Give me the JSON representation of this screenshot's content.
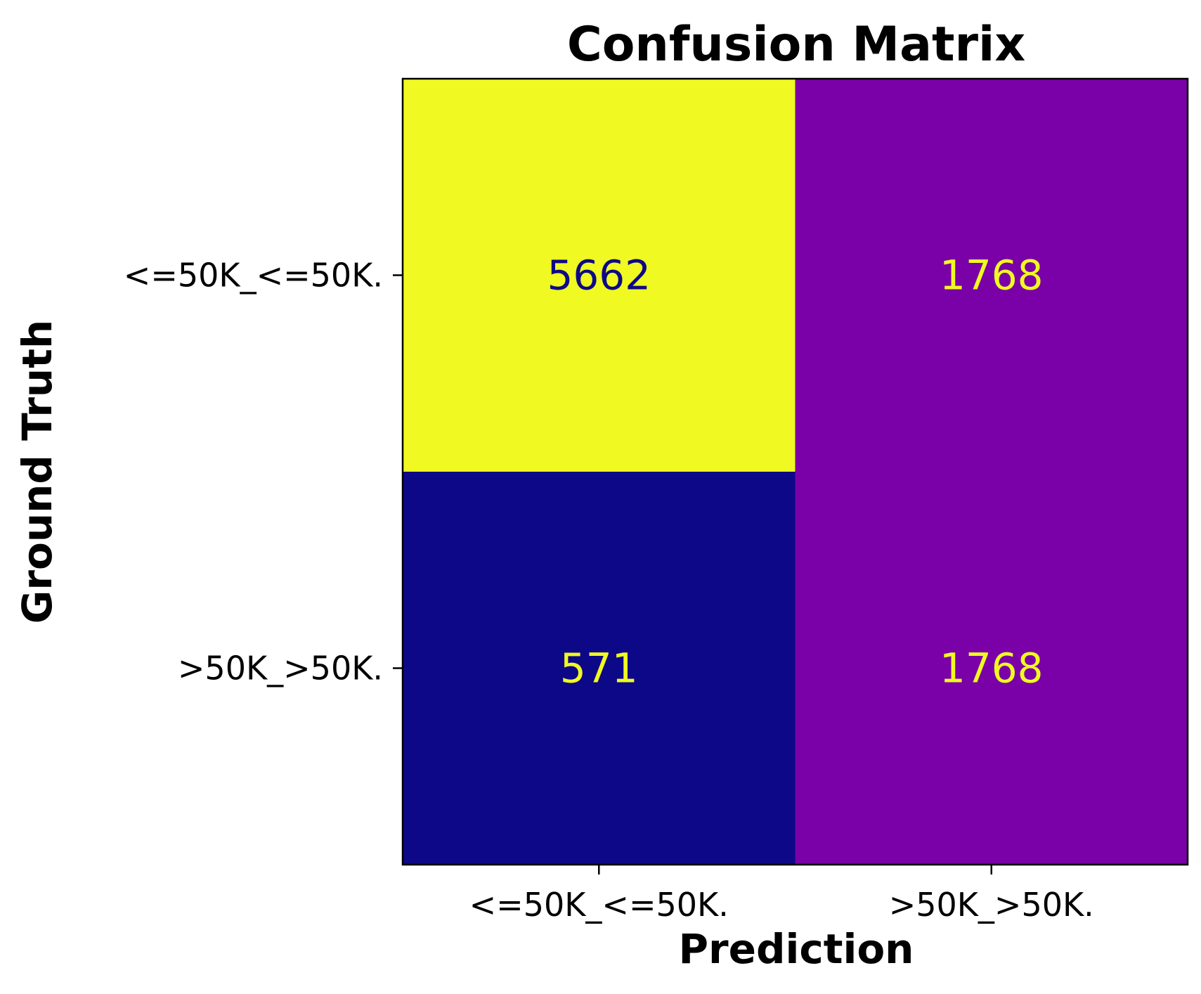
{
  "chart_data": {
    "type": "heatmap",
    "title": "Confusion Matrix",
    "xlabel": "Prediction",
    "ylabel": "Ground Truth",
    "x_categories": [
      "<=50K_<=50K.",
      ">50K_>50K."
    ],
    "y_categories": [
      "<=50K_<=50K.",
      ">50K_>50K."
    ],
    "matrix": [
      [
        5662,
        1768
      ],
      [
        571,
        1768
      ]
    ],
    "colormap": "plasma",
    "cell_colors": [
      [
        "#f0f921",
        "#7a00a8"
      ],
      [
        "#0d0887",
        "#7a00a8"
      ]
    ],
    "cell_text_colors": [
      [
        "#0d0887",
        "#f0f921"
      ],
      [
        "#f0f921",
        "#f0f921"
      ]
    ],
    "colorbar": false,
    "grid": false
  }
}
